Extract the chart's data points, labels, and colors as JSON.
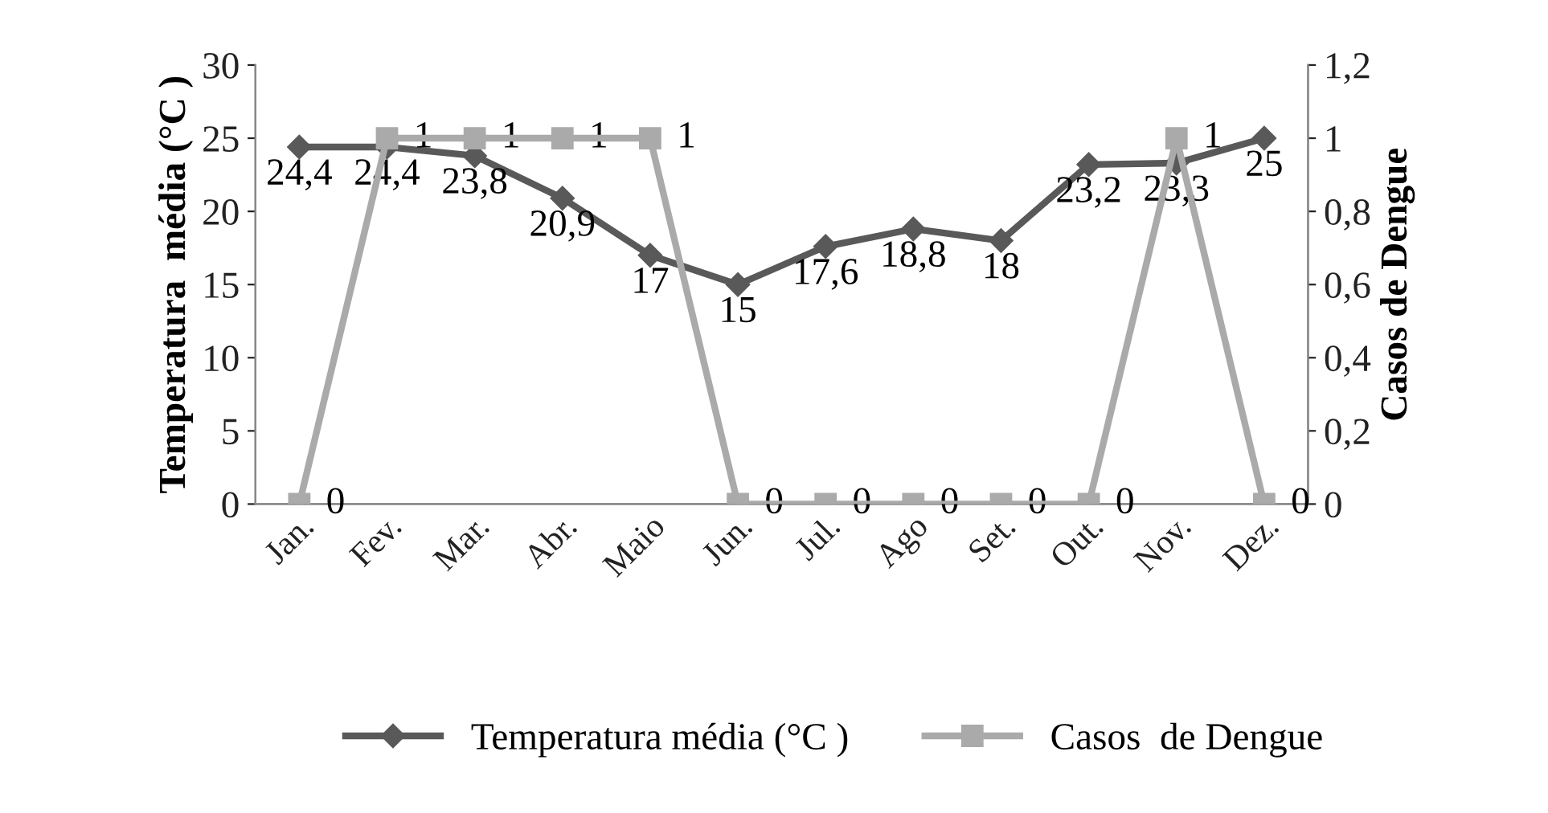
{
  "chart_data": {
    "type": "line",
    "categories": [
      "Jan.",
      "Fev.",
      "Mar.",
      "Abr.",
      "Maio",
      "Jun.",
      "Jul.",
      "Ago",
      "Set.",
      "Out.",
      "Nov.",
      "Dez."
    ],
    "series": [
      {
        "name": "Temperatura média (°C )",
        "color": "#595959",
        "marker": "diamond",
        "values": [
          24.4,
          24.4,
          23.8,
          20.9,
          17,
          15,
          17.6,
          18.8,
          18,
          23.2,
          23.3,
          25
        ],
        "value_labels": [
          "24,4",
          "24,4",
          "23,8",
          "20,9",
          "17",
          "15",
          "17,6",
          "18,8",
          "18",
          "23,2",
          "23,3",
          "25"
        ]
      },
      {
        "name": "Casos  de Dengue",
        "color": "#aaaaaa",
        "marker": "square",
        "axis": "y2",
        "values": [
          0,
          1,
          1,
          1,
          1,
          0,
          0,
          0,
          0,
          0,
          1,
          0
        ],
        "value_labels": [
          "0",
          "1",
          "1",
          "1",
          "1",
          "0",
          "0",
          "0",
          "0",
          "0",
          "1",
          "0"
        ]
      }
    ],
    "ylabel": "Temperatura  média (°C )",
    "y2label": "Casos de Dengue",
    "ylim": [
      0,
      30
    ],
    "yticks": [
      0,
      5,
      10,
      15,
      20,
      25,
      30
    ],
    "y2lim": [
      0,
      1.2
    ],
    "y2ticks": [
      {
        "value": 0,
        "label": "0"
      },
      {
        "value": 0.2,
        "label": "0,2"
      },
      {
        "value": 0.4,
        "label": "0,4"
      },
      {
        "value": 0.6,
        "label": "0,6"
      },
      {
        "value": 0.8,
        "label": "0,8"
      },
      {
        "value": 1,
        "label": "1"
      },
      {
        "value": 1.2,
        "label": "1,2"
      }
    ],
    "legend": "bottom",
    "grid": false,
    "line_style": "solid"
  }
}
